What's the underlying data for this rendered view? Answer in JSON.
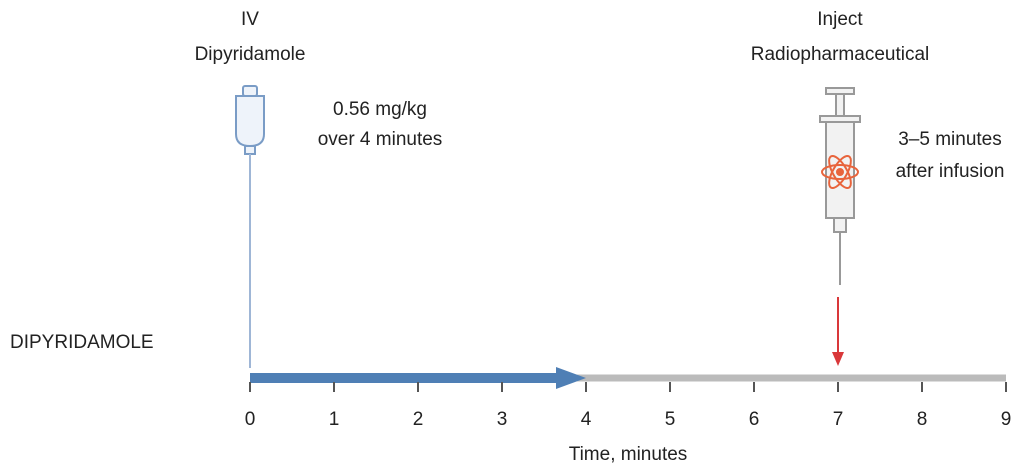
{
  "drug": {
    "label_lines": [
      "IV",
      "Dipyridamole"
    ],
    "dose_lines": [
      "0.56 mg/kg",
      "over 4 minutes"
    ]
  },
  "injection": {
    "label_lines": [
      "Inject",
      "Radiopharmaceutical"
    ],
    "timing_lines": [
      "3–5 minutes",
      "after infusion"
    ],
    "time": 7
  },
  "row_label": "DIPYRIDAMOLE",
  "timeline": {
    "xlim": [
      0,
      9
    ],
    "xticks": [
      0,
      1,
      2,
      3,
      4,
      5,
      6,
      7,
      8,
      9
    ],
    "xlabel": "Time, minutes",
    "infusion": {
      "start": 0,
      "end": 4
    }
  }
}
